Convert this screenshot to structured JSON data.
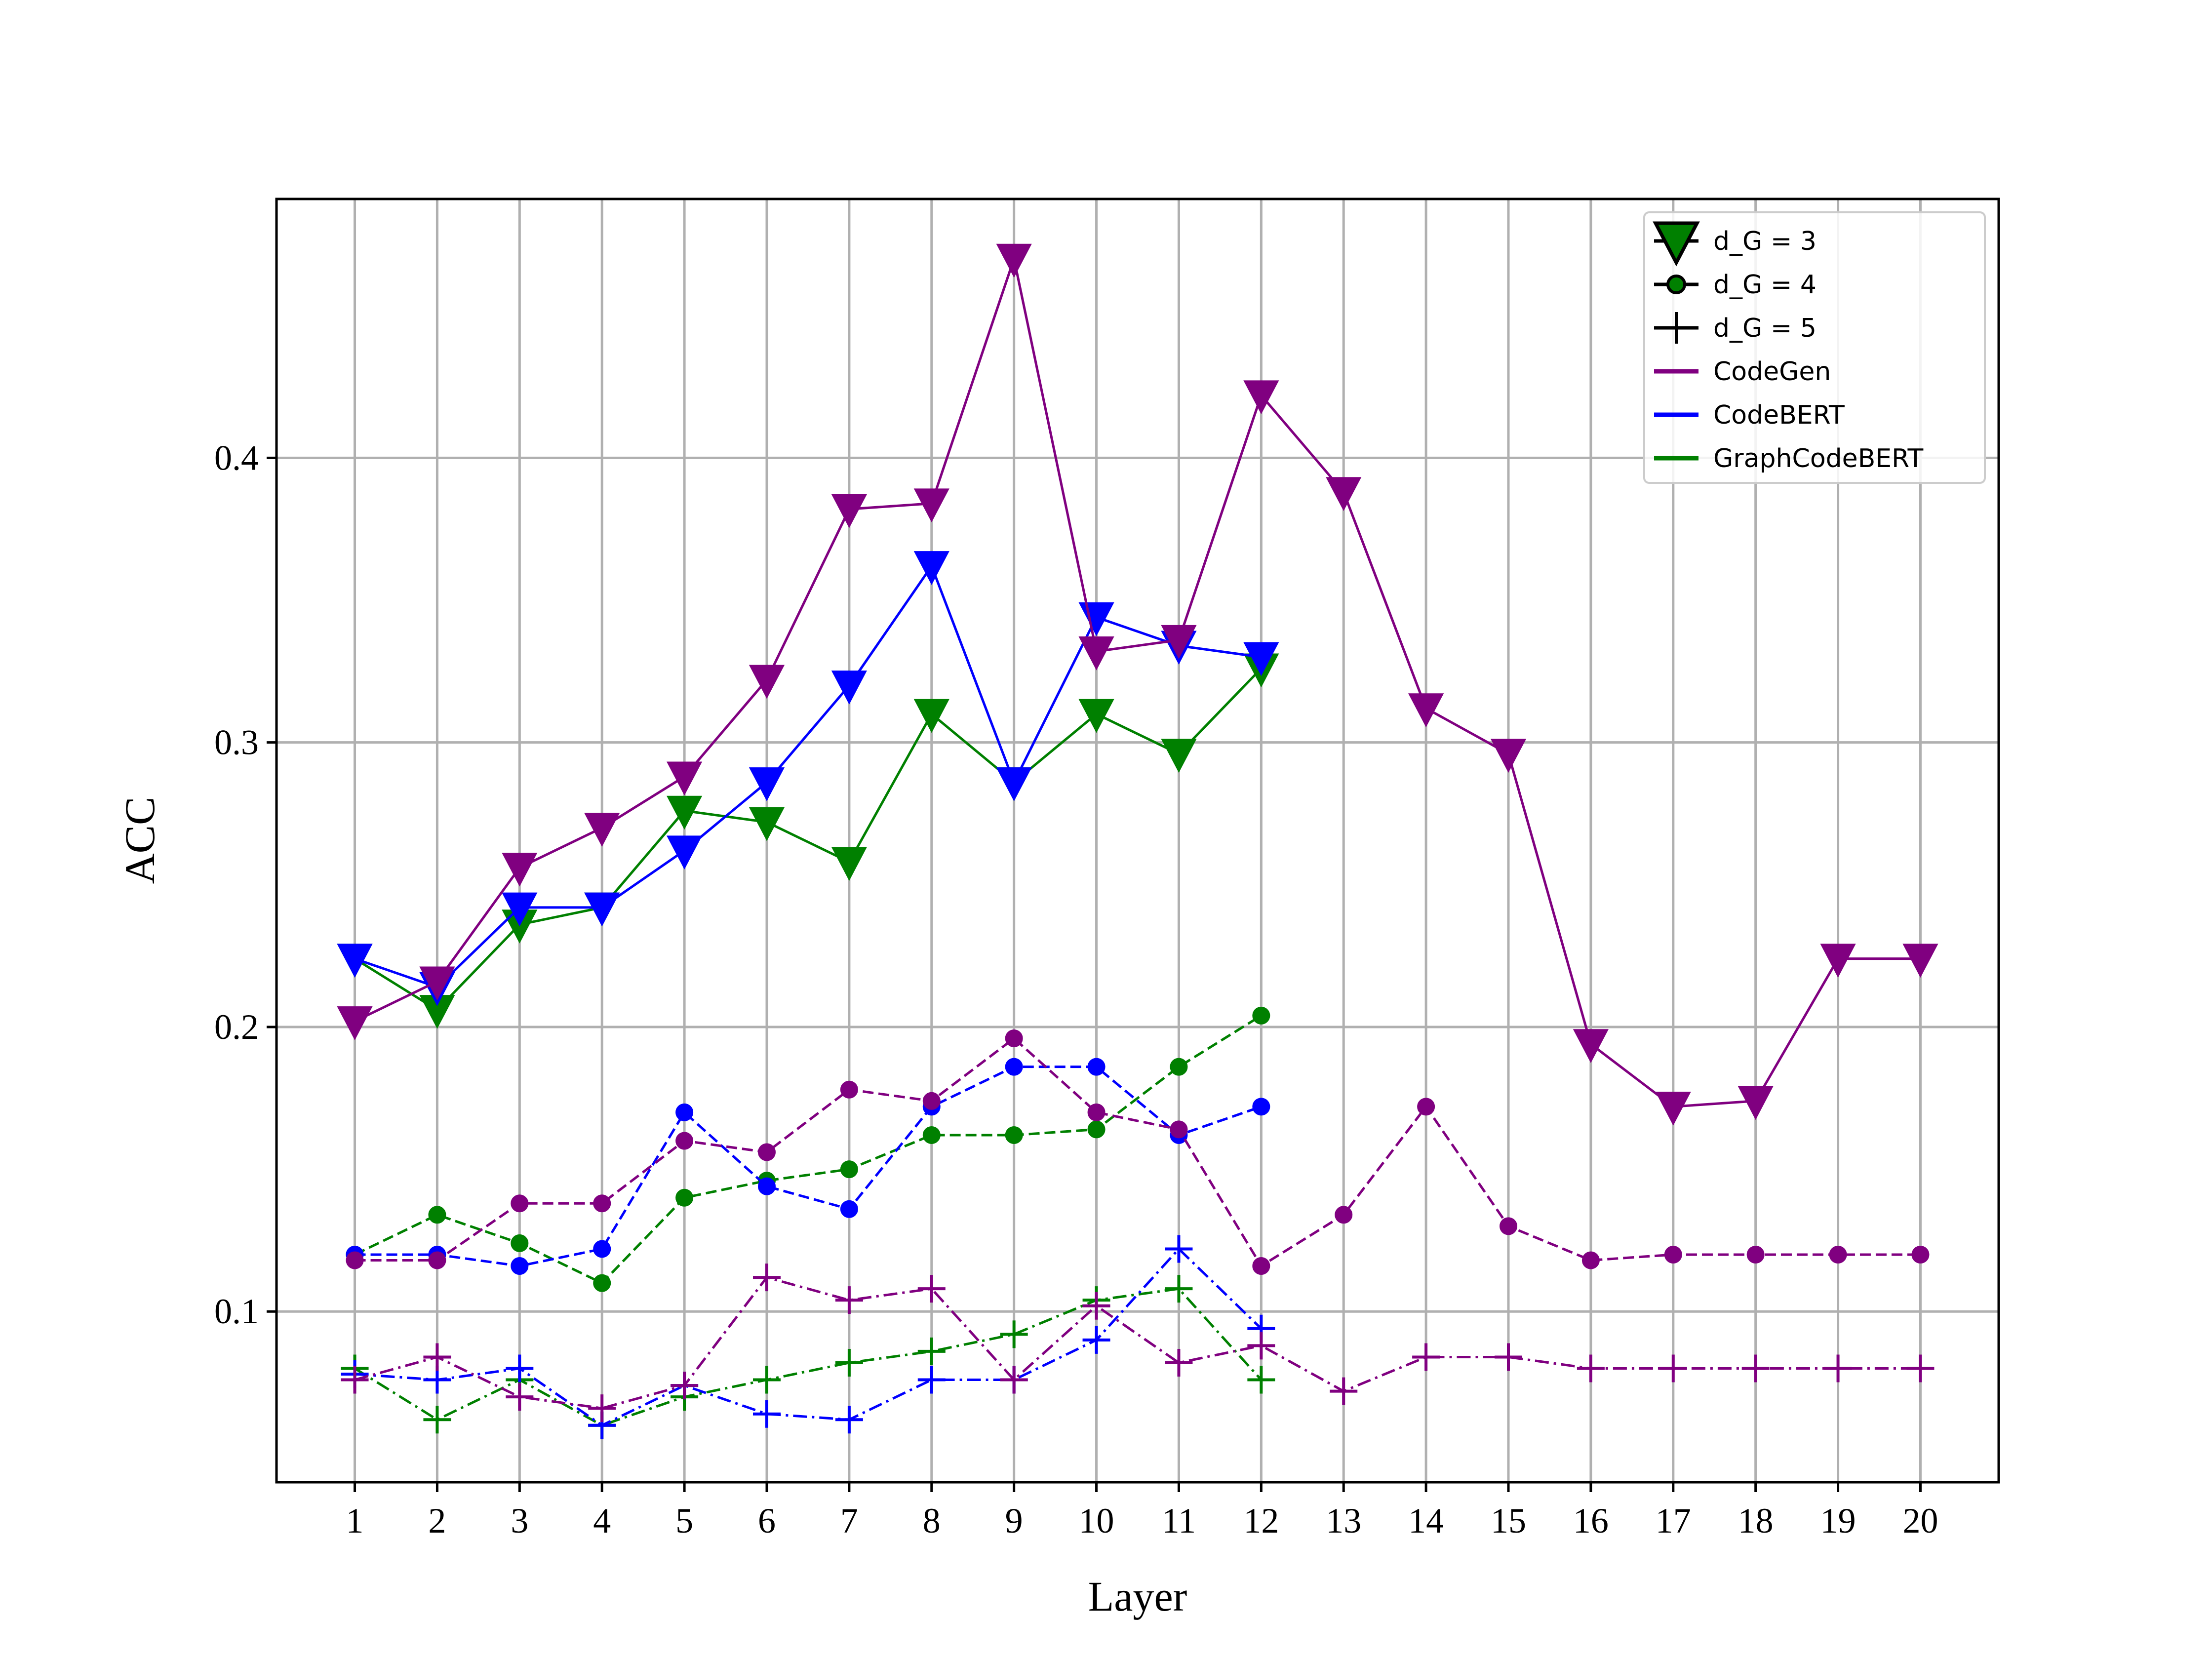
{
  "chart_data": {
    "type": "line",
    "xlabel": "Layer",
    "ylabel": "ACC",
    "title": "",
    "x": [
      1,
      2,
      3,
      4,
      5,
      6,
      7,
      8,
      9,
      10,
      11,
      12,
      13,
      14,
      15,
      16,
      17,
      18,
      19,
      20
    ],
    "xticks": [
      "1",
      "2",
      "3",
      "4",
      "5",
      "6",
      "7",
      "8",
      "9",
      "10",
      "11",
      "12",
      "13",
      "14",
      "15",
      "16",
      "17",
      "18",
      "19",
      "20"
    ],
    "yticks": [
      0.1,
      0.2,
      0.3,
      0.4
    ],
    "ytick_labels": [
      "0.1",
      "0.2",
      "0.3",
      "0.4"
    ],
    "xlim": [
      0.05,
      20.95
    ],
    "ylim": [
      0.04,
      0.491
    ],
    "grid": true,
    "legend_position": "top-right",
    "legend": [
      {
        "label": "d_G = 3",
        "kind": "marker",
        "marker": "triangle-down"
      },
      {
        "label": "d_G = 4",
        "kind": "marker",
        "marker": "circle"
      },
      {
        "label": "d_G = 5",
        "kind": "marker",
        "marker": "plus"
      },
      {
        "label": "CodeGen",
        "kind": "line",
        "color": "#800080"
      },
      {
        "label": "CodeBERT",
        "kind": "line",
        "color": "#0000ff"
      },
      {
        "label": "GraphCodeBERT",
        "kind": "line",
        "color": "#008000"
      }
    ],
    "series": [
      {
        "model": "CodeGen",
        "depth": 3,
        "color": "#800080",
        "line_style": "solid",
        "marker": "triangle-down",
        "x": [
          1,
          2,
          3,
          4,
          5,
          6,
          7,
          8,
          9,
          10,
          11,
          12,
          13,
          14,
          15,
          16,
          17,
          18,
          19,
          20
        ],
        "values": [
          0.202,
          0.216,
          0.256,
          0.27,
          0.288,
          0.322,
          0.382,
          0.384,
          0.47,
          0.332,
          0.336,
          0.422,
          0.388,
          0.312,
          0.296,
          0.194,
          0.172,
          0.174,
          0.224,
          0.224
        ]
      },
      {
        "model": "CodeBERT",
        "depth": 3,
        "color": "#0000ff",
        "line_style": "solid",
        "marker": "triangle-down",
        "x": [
          1,
          2,
          3,
          4,
          5,
          6,
          7,
          8,
          9,
          10,
          11,
          12
        ],
        "values": [
          0.224,
          0.214,
          0.242,
          0.242,
          0.262,
          0.286,
          0.32,
          0.362,
          0.286,
          0.344,
          0.334,
          0.33
        ]
      },
      {
        "model": "GraphCodeBERT",
        "depth": 3,
        "color": "#008000",
        "line_style": "solid",
        "marker": "triangle-down",
        "x": [
          1,
          2,
          3,
          4,
          5,
          6,
          7,
          8,
          9,
          10,
          11,
          12
        ],
        "values": [
          0.224,
          0.206,
          0.236,
          0.242,
          0.276,
          0.272,
          0.258,
          0.31,
          0.286,
          0.31,
          0.296,
          0.326
        ]
      },
      {
        "model": "CodeGen",
        "depth": 4,
        "color": "#800080",
        "line_style": "dashed",
        "marker": "circle",
        "x": [
          1,
          2,
          3,
          4,
          5,
          6,
          7,
          8,
          9,
          10,
          11,
          12,
          13,
          14,
          15,
          16,
          17,
          18,
          19,
          20
        ],
        "values": [
          0.118,
          0.118,
          0.138,
          0.138,
          0.16,
          0.156,
          0.178,
          0.174,
          0.196,
          0.17,
          0.164,
          0.116,
          0.134,
          0.172,
          0.13,
          0.118,
          0.12,
          0.12,
          0.12,
          0.12
        ]
      },
      {
        "model": "CodeBERT",
        "depth": 4,
        "color": "#0000ff",
        "line_style": "dashed",
        "marker": "circle",
        "x": [
          1,
          2,
          3,
          4,
          5,
          6,
          7,
          8,
          9,
          10,
          11,
          12
        ],
        "values": [
          0.12,
          0.12,
          0.116,
          0.122,
          0.17,
          0.144,
          0.136,
          0.172,
          0.186,
          0.186,
          0.162,
          0.172
        ]
      },
      {
        "model": "GraphCodeBERT",
        "depth": 4,
        "color": "#008000",
        "line_style": "dashed",
        "marker": "circle",
        "x": [
          1,
          2,
          3,
          4,
          5,
          6,
          7,
          8,
          9,
          10,
          11,
          12
        ],
        "values": [
          0.12,
          0.134,
          0.124,
          0.11,
          0.14,
          0.146,
          0.15,
          0.162,
          0.162,
          0.164,
          0.186,
          0.204
        ]
      },
      {
        "model": "CodeGen",
        "depth": 5,
        "color": "#800080",
        "line_style": "dashdot",
        "marker": "plus",
        "x": [
          1,
          2,
          3,
          4,
          5,
          6,
          7,
          8,
          9,
          10,
          11,
          12,
          13,
          14,
          15,
          16,
          17,
          18,
          19,
          20
        ],
        "values": [
          0.076,
          0.084,
          0.07,
          0.066,
          0.074,
          0.112,
          0.104,
          0.108,
          0.076,
          0.102,
          0.082,
          0.088,
          0.072,
          0.084,
          0.084,
          0.08,
          0.08,
          0.08,
          0.08,
          0.08
        ]
      },
      {
        "model": "CodeBERT",
        "depth": 5,
        "color": "#0000ff",
        "line_style": "dashdot",
        "marker": "plus",
        "x": [
          1,
          2,
          3,
          4,
          5,
          6,
          7,
          8,
          9,
          10,
          11,
          12
        ],
        "values": [
          0.078,
          0.076,
          0.08,
          0.06,
          0.074,
          0.064,
          0.062,
          0.076,
          0.076,
          0.09,
          0.122,
          0.094
        ]
      },
      {
        "model": "GraphCodeBERT",
        "depth": 5,
        "color": "#008000",
        "line_style": "dashdot",
        "marker": "plus",
        "x": [
          1,
          2,
          3,
          4,
          5,
          6,
          7,
          8,
          9,
          10,
          11,
          12
        ],
        "values": [
          0.08,
          0.062,
          0.076,
          0.06,
          0.07,
          0.076,
          0.082,
          0.086,
          0.092,
          0.104,
          0.108,
          0.076
        ]
      }
    ]
  }
}
